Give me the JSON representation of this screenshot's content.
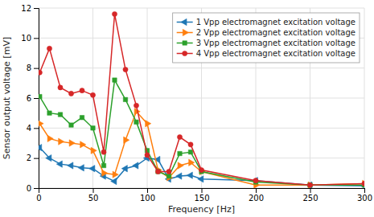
{
  "chart_data": {
    "type": "line",
    "xlabel": "Frequency [Hz]",
    "ylabel": "Sensor output voltage [mV]",
    "x": [
      1,
      10,
      20,
      30,
      40,
      50,
      60,
      70,
      80,
      90,
      100,
      110,
      120,
      130,
      140,
      150,
      200,
      250,
      300
    ],
    "series": [
      {
        "name": "1 Vpp electromagnet excitation voltage",
        "marker": "triangle-left",
        "values": [
          2.7,
          2.0,
          1.6,
          1.5,
          1.35,
          1.3,
          0.8,
          0.45,
          1.3,
          1.5,
          2.0,
          1.9,
          0.6,
          0.8,
          0.85,
          0.6,
          0.5,
          0.2,
          0.15
        ]
      },
      {
        "name": "2 Vpp electromagnet excitation voltage",
        "marker": "triangle-right",
        "values": [
          4.3,
          3.3,
          3.1,
          3.0,
          2.9,
          2.5,
          1.0,
          0.9,
          3.2,
          5.1,
          4.3,
          1.2,
          0.7,
          1.5,
          1.7,
          1.1,
          0.2,
          0.2,
          0.3
        ]
      },
      {
        "name": "3 Vpp electromagnet excitation voltage",
        "marker": "square",
        "values": [
          6.1,
          5.0,
          4.9,
          4.2,
          4.7,
          4.0,
          1.5,
          7.2,
          5.9,
          4.4,
          2.5,
          1.1,
          0.8,
          2.3,
          2.4,
          1.1,
          0.4,
          0.2,
          0.2
        ]
      },
      {
        "name": "4 Vpp electromagnet excitation voltage",
        "marker": "circle",
        "values": [
          7.7,
          9.3,
          6.7,
          6.3,
          6.5,
          6.2,
          2.4,
          11.6,
          7.9,
          5.5,
          2.2,
          1.1,
          1.1,
          3.4,
          2.9,
          1.2,
          0.5,
          0.2,
          0.3
        ]
      }
    ],
    "xlim": [
      0,
      300
    ],
    "ylim": [
      0,
      12
    ],
    "xticks": [
      0,
      50,
      100,
      150,
      200,
      250,
      300
    ],
    "yticks": [
      0,
      2,
      4,
      6,
      8,
      10,
      12
    ],
    "grid": true,
    "legend": "upper-right"
  }
}
